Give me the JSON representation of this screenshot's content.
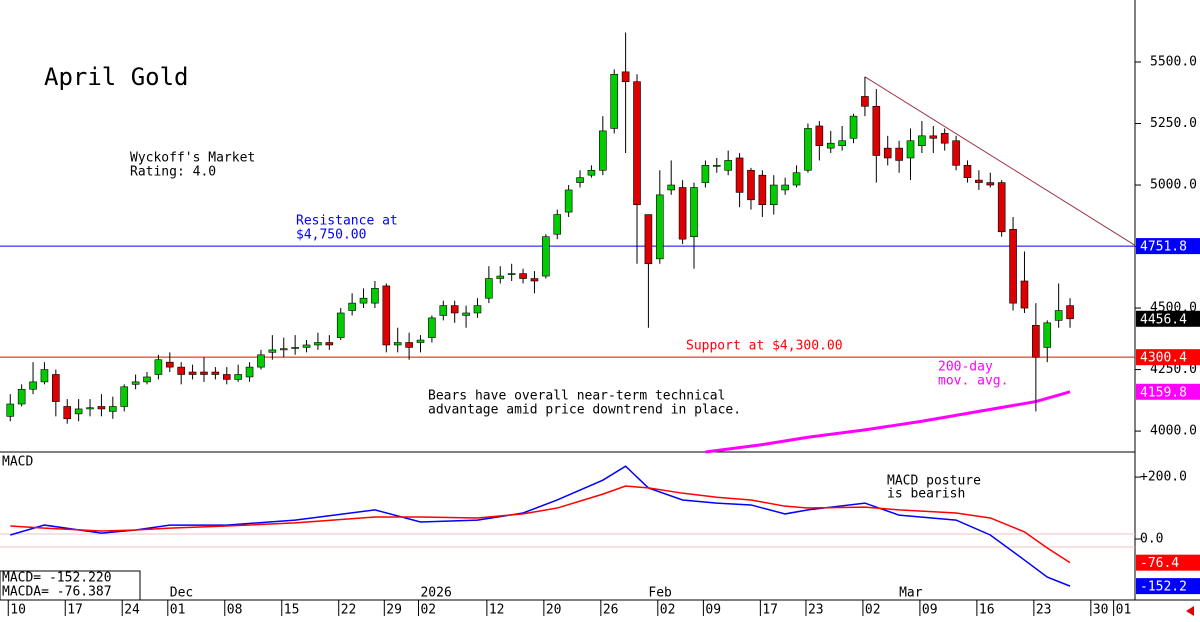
{
  "chart_data": [
    {
      "type": "candlestick",
      "title": "April Gold",
      "rating": [
        "Wyckoff's Market",
        "Rating: 4.0"
      ],
      "note": [
        "Bears have overall near-term technical",
        "advantage amid price downtrend in place."
      ],
      "up_color": "#00cc00",
      "down_color": "#dd0000",
      "open": [
        4060,
        4110,
        4170,
        4200,
        4230,
        4100,
        4070,
        4090,
        4100,
        4080,
        4100,
        4190,
        4200,
        4230,
        4280,
        4260,
        4240,
        4240,
        4240,
        4230,
        4210,
        4220,
        4260,
        4320,
        4330,
        4340,
        4340,
        4350,
        4360,
        4380,
        4490,
        4520,
        4520,
        4590,
        4350,
        4360,
        4360,
        4380,
        4470,
        4510,
        4470,
        4480,
        4540,
        4620,
        4640,
        4640,
        4620,
        4630,
        4800,
        4890,
        5010,
        5040,
        5060,
        5230,
        5460,
        5420,
        4880,
        4700,
        4980,
        4990,
        4790,
        5010,
        5080,
        5060,
        5110,
        5060,
        5040,
        4920,
        4980,
        5000,
        5060,
        5240,
        5150,
        5160,
        5190,
        5360,
        5320,
        5150,
        5150,
        5110,
        5160,
        5200,
        5210,
        5180,
        5080,
        5020,
        5010,
        5010,
        4820,
        4610,
        4430,
        4340,
        4450,
        4510
      ],
      "high": [
        4150,
        4190,
        4280,
        4280,
        4250,
        4130,
        4130,
        4130,
        4150,
        4140,
        4190,
        4230,
        4240,
        4310,
        4320,
        4280,
        4270,
        4300,
        4260,
        4260,
        4270,
        4280,
        4330,
        4390,
        4380,
        4390,
        4370,
        4400,
        4390,
        4500,
        4560,
        4580,
        4610,
        4600,
        4420,
        4400,
        4390,
        4470,
        4530,
        4530,
        4510,
        4540,
        4670,
        4670,
        4680,
        4660,
        4650,
        4800,
        4900,
        5000,
        5060,
        5080,
        5280,
        5470,
        5620,
        5450,
        4880,
        5060,
        5100,
        5020,
        5010,
        5100,
        5110,
        5140,
        5130,
        5070,
        5060,
        5040,
        5030,
        5080,
        5250,
        5260,
        5220,
        5240,
        5290,
        5440,
        5390,
        5200,
        5180,
        5230,
        5260,
        5240,
        5230,
        5200,
        5100,
        5060,
        5050,
        5020,
        4870,
        4730,
        4520,
        4450,
        4600,
        4540
      ],
      "low": [
        4040,
        4100,
        4150,
        4190,
        4060,
        4030,
        4040,
        4060,
        4060,
        4050,
        4080,
        4170,
        4190,
        4210,
        4240,
        4190,
        4210,
        4200,
        4210,
        4190,
        4200,
        4200,
        4250,
        4290,
        4300,
        4310,
        4320,
        4330,
        4330,
        4370,
        4470,
        4500,
        4500,
        4320,
        4320,
        4290,
        4320,
        4360,
        4450,
        4440,
        4420,
        4460,
        4520,
        4600,
        4610,
        4600,
        4560,
        4620,
        4780,
        4870,
        4990,
        5030,
        5040,
        5210,
        5130,
        4680,
        4420,
        4680,
        4960,
        4760,
        4660,
        4990,
        5050,
        5040,
        4910,
        4900,
        4870,
        4880,
        4960,
        4990,
        5050,
        5100,
        5130,
        5140,
        5170,
        5280,
        5010,
        5080,
        5050,
        5020,
        5130,
        5130,
        5140,
        5060,
        5010,
        4980,
        4990,
        4790,
        4490,
        4480,
        4080,
        4280,
        4420,
        4420
      ],
      "close": [
        4110,
        4170,
        4200,
        4250,
        4120,
        4050,
        4090,
        4095,
        4090,
        4100,
        4180,
        4200,
        4220,
        4290,
        4260,
        4230,
        4230,
        4230,
        4230,
        4210,
        4230,
        4260,
        4310,
        4330,
        4335,
        4340,
        4350,
        4360,
        4350,
        4480,
        4520,
        4540,
        4580,
        4350,
        4360,
        4340,
        4370,
        4460,
        4510,
        4480,
        4480,
        4510,
        4620,
        4630,
        4640,
        4620,
        4610,
        4790,
        4880,
        4980,
        5030,
        5060,
        5220,
        5450,
        5420,
        4920,
        4680,
        4960,
        5000,
        4780,
        4990,
        5080,
        5080,
        5100,
        4970,
        4940,
        4920,
        5000,
        5000,
        5050,
        5230,
        5160,
        5170,
        5180,
        5280,
        5320,
        5120,
        5110,
        5100,
        5180,
        5200,
        5190,
        5170,
        5080,
        5030,
        5010,
        5000,
        4810,
        4520,
        4500,
        4300,
        4440,
        4490,
        4456.4
      ],
      "xlim": [
        -0.9,
        98.7
      ],
      "ylim": [
        3915,
        5752
      ],
      "yticks": [
        {
          "value": 4000,
          "label": "4000.0"
        },
        {
          "value": 4250,
          "label": "4250.0"
        },
        {
          "value": 4500,
          "label": "4500.0"
        },
        {
          "value": 4750,
          "label": "4750.0"
        },
        {
          "value": 5000,
          "label": "5000.0"
        },
        {
          "value": 5250,
          "label": "5250.0"
        },
        {
          "value": 5500,
          "label": "5500.0"
        }
      ],
      "resistance": {
        "value": 4751.8,
        "label": [
          "Resistance at",
          "$4,750.00"
        ],
        "color": "#0000ff"
      },
      "support": {
        "value": 4300.4,
        "label": "Support at $4,300.00",
        "color": "#ff0000"
      },
      "moving_average": {
        "label": [
          "200-day",
          "mov. avg."
        ],
        "color": "#ff00ff",
        "x": [
          61,
          66,
          70,
          75,
          80,
          85,
          90,
          93
        ],
        "values": [
          3915,
          3945,
          3975,
          4005,
          4040,
          4080,
          4120,
          4159.8
        ]
      },
      "trendline": {
        "x": [
          75,
          98.7
        ],
        "y": [
          5440,
          4755
        ],
        "color": "#993344"
      }
    },
    {
      "type": "line",
      "title": "MACD",
      "annotation": [
        "MACD posture",
        "is bearish"
      ],
      "readout": [
        "MACD= -152.220",
        "MACDA= -76.387"
      ],
      "x": [
        0,
        3,
        8,
        11,
        14,
        19,
        25,
        32,
        36,
        41,
        45,
        48,
        52,
        54,
        56,
        59,
        62,
        65,
        68,
        70,
        75,
        78,
        83,
        86,
        89,
        91,
        93
      ],
      "series": [
        {
          "color": "#0000ff",
          "values": [
            13,
            45,
            19,
            29,
            45,
            45,
            61,
            94,
            55,
            61,
            84,
            126,
            190,
            235,
            165,
            126,
            116,
            110,
            81,
            94,
            116,
            77,
            61,
            13,
            -68,
            -123,
            -152.2
          ]
        },
        {
          "color": "#ff0000",
          "values": [
            42,
            35,
            26,
            29,
            35,
            42,
            52,
            71,
            71,
            68,
            81,
            100,
            145,
            171,
            165,
            148,
            135,
            126,
            106,
            100,
            103,
            94,
            84,
            68,
            23,
            -29,
            -76.4
          ]
        }
      ],
      "xlim": [
        -0.9,
        98.7
      ],
      "ylim": [
        -197,
        281
      ],
      "yticks": [
        {
          "value": 0,
          "label": "0.0"
        },
        {
          "value": 200,
          "label": "+200.0"
        }
      ],
      "xticks": [
        {
          "value": 0,
          "label": "10"
        },
        {
          "value": 5,
          "label": "17"
        },
        {
          "value": 10,
          "label": "24"
        },
        {
          "value": 14,
          "label": "01"
        },
        {
          "value": 19,
          "label": "08"
        },
        {
          "value": 24,
          "label": "15"
        },
        {
          "value": 29,
          "label": "22"
        },
        {
          "value": 33,
          "label": "29"
        },
        {
          "value": 36,
          "label": "02"
        },
        {
          "value": 42,
          "label": "12"
        },
        {
          "value": 47,
          "label": "20"
        },
        {
          "value": 52,
          "label": "26"
        },
        {
          "value": 57,
          "label": "02"
        },
        {
          "value": 61,
          "label": "09"
        },
        {
          "value": 66,
          "label": "17"
        },
        {
          "value": 70,
          "label": "23"
        },
        {
          "value": 75,
          "label": "02"
        },
        {
          "value": 80,
          "label": "09"
        },
        {
          "value": 85,
          "label": "16"
        },
        {
          "value": 90,
          "label": "23"
        },
        {
          "value": 95,
          "label": "30"
        },
        {
          "value": 97,
          "label": "01"
        }
      ],
      "month_labels": [
        {
          "label": "Dec",
          "at": 14
        },
        {
          "label": "2026",
          "at": 36
        },
        {
          "label": "Feb",
          "at": 56
        },
        {
          "label": "Mar",
          "at": 78
        }
      ]
    }
  ]
}
